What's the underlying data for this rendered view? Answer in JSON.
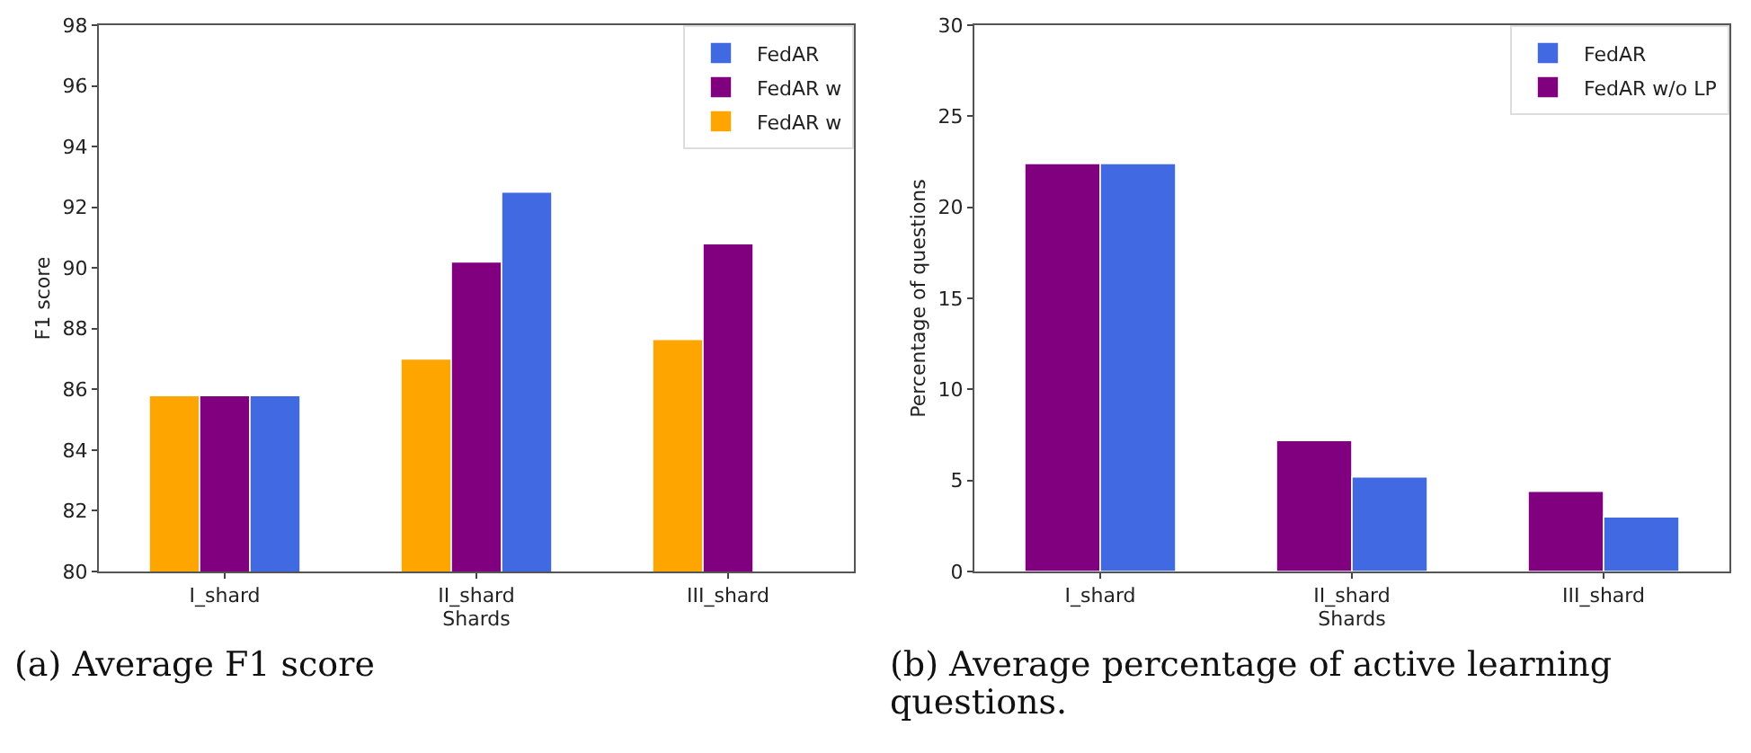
{
  "chart_data": [
    {
      "type": "bar",
      "categories": [
        "I_shard",
        "II_shard",
        "III_shard"
      ],
      "xlabel": "Shards",
      "ylabel": "F1 score",
      "ylim": [
        80,
        98
      ],
      "yticks": [
        80,
        82,
        84,
        86,
        88,
        90,
        92,
        94,
        96,
        98
      ],
      "grid": false,
      "legend": "top right",
      "annotations": [
        "(a) Average F1 score"
      ],
      "series": [
        {
          "name": "FedAR w",
          "color": "#ffa500",
          "values": [
            85.8,
            87.0,
            87.65
          ]
        },
        {
          "name": "FedAR w",
          "color": "#800080",
          "values": [
            85.8,
            90.2,
            90.8
          ]
        },
        {
          "name": "FedAR",
          "color": "#4169e1",
          "values": [
            85.8,
            92.5,
            null
          ]
        }
      ]
    },
    {
      "type": "bar",
      "categories": [
        "I_shard",
        "II_shard",
        "III_shard"
      ],
      "xlabel": "Shards",
      "ylabel": "Percentage of questions",
      "ylim": [
        0,
        30
      ],
      "yticks": [
        0,
        5,
        10,
        15,
        20,
        25,
        30
      ],
      "grid": false,
      "legend": "top right",
      "annotations": [
        "(b) Average percentage of active learning questions."
      ],
      "series": [
        {
          "name": "FedAR w/o LP",
          "color": "#800080",
          "values": [
            22.4,
            7.2,
            4.4
          ]
        },
        {
          "name": "FedAR",
          "color": "#4169e1",
          "values": [
            22.4,
            5.2,
            3.0
          ]
        }
      ]
    }
  ]
}
